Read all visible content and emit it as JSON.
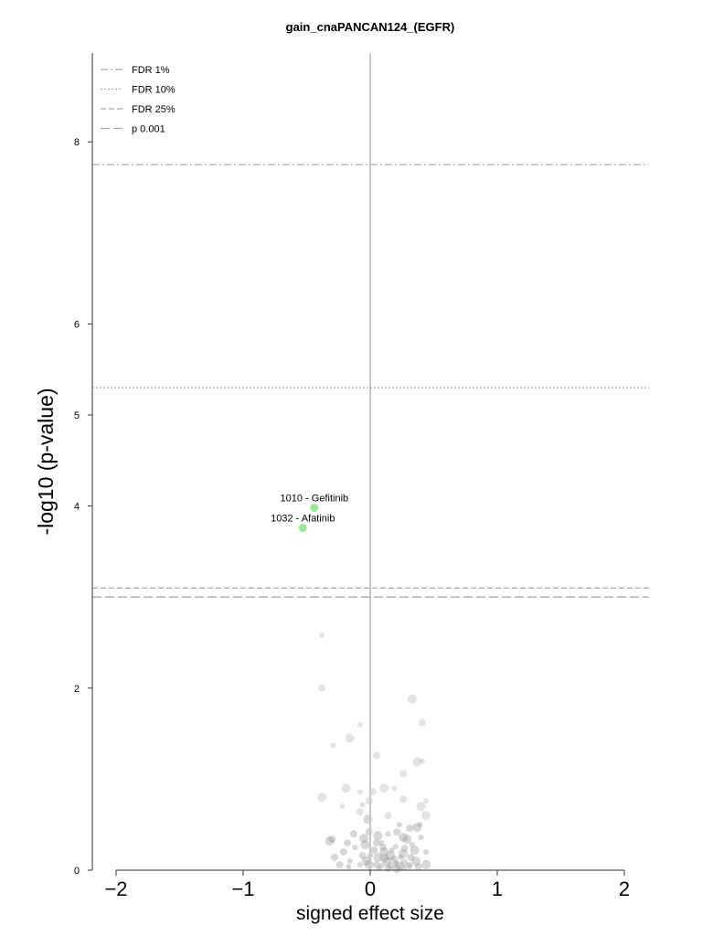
{
  "chart_data": {
    "type": "scatter",
    "title": "gain_cnaPANCAN124_(EGFR)",
    "xlabel": "signed effect size",
    "ylabel": "-log10 (p-value)",
    "xlim": [
      -2.2,
      2.2
    ],
    "ylim": [
      0,
      8.98
    ],
    "x_ticks": [
      "-2",
      "-1",
      "0",
      "1",
      "2"
    ],
    "y_ticks": [
      "0",
      "2",
      "4",
      "5",
      "6",
      "8"
    ],
    "grid": false,
    "legend_position": "top-left",
    "thresholds": [
      {
        "name": "FDR 1%",
        "style": "dashdot",
        "y": 7.75
      },
      {
        "name": "FDR 10%",
        "style": "dotted",
        "y": 5.3
      },
      {
        "name": "FDR 25%",
        "style": "dashed",
        "y": 3.1
      },
      {
        "name": "p 0.001",
        "style": "longdash",
        "y": 3.0
      }
    ],
    "highlighted_points": [
      {
        "label": "1010 - Gefitinib",
        "x": -0.44,
        "y": 3.98,
        "color": "#9be89b"
      },
      {
        "label": "1032 - Afatinib",
        "x": -0.53,
        "y": 3.76,
        "color": "#9be89b"
      }
    ],
    "background_points": [
      [
        -0.38,
        2.58
      ],
      [
        -0.38,
        2.0
      ],
      [
        0.33,
        1.88
      ],
      [
        -0.08,
        1.6
      ],
      [
        0.41,
        1.62
      ],
      [
        -0.16,
        1.45
      ],
      [
        -0.29,
        1.37
      ],
      [
        0.05,
        1.26
      ],
      [
        0.37,
        1.19
      ],
      [
        0.41,
        1.2
      ],
      [
        0.26,
        1.06
      ],
      [
        -0.19,
        0.9
      ],
      [
        -0.08,
        0.86
      ],
      [
        0.02,
        0.86
      ],
      [
        0.11,
        0.9
      ],
      [
        0.19,
        0.9
      ],
      [
        0.26,
        0.78
      ],
      [
        -0.38,
        0.8
      ],
      [
        -0.06,
        0.72
      ],
      [
        -0.01,
        0.76
      ],
      [
        0.4,
        0.7
      ],
      [
        0.44,
        0.76
      ],
      [
        0.14,
        0.6
      ],
      [
        0.44,
        0.6
      ],
      [
        -0.22,
        0.7
      ],
      [
        -0.08,
        0.64
      ],
      [
        -0.02,
        0.56
      ],
      [
        0.23,
        0.5
      ],
      [
        0.31,
        0.46
      ],
      [
        0.37,
        0.47
      ],
      [
        0.39,
        0.5
      ],
      [
        -0.01,
        0.42
      ],
      [
        0.06,
        0.38
      ],
      [
        0.14,
        0.4
      ],
      [
        0.21,
        0.42
      ],
      [
        0.29,
        0.34
      ],
      [
        0.4,
        0.36
      ],
      [
        -0.3,
        0.34
      ],
      [
        -0.05,
        0.35
      ],
      [
        0.09,
        0.3
      ],
      [
        -0.18,
        0.3
      ],
      [
        -0.32,
        0.32
      ],
      [
        0.2,
        0.26
      ],
      [
        0.27,
        0.24
      ],
      [
        0.35,
        0.22
      ],
      [
        0.44,
        0.2
      ],
      [
        0.03,
        0.22
      ],
      [
        0.11,
        0.2
      ],
      [
        -0.12,
        0.25
      ],
      [
        -0.21,
        0.2
      ],
      [
        0.16,
        0.16
      ],
      [
        0.24,
        0.14
      ],
      [
        0.32,
        0.14
      ],
      [
        0.06,
        0.14
      ],
      [
        0.0,
        0.16
      ],
      [
        -0.06,
        0.16
      ],
      [
        0.13,
        0.1
      ],
      [
        0.2,
        0.08
      ],
      [
        0.27,
        0.08
      ],
      [
        0.36,
        0.1
      ],
      [
        0.09,
        0.05
      ],
      [
        0.16,
        0.05
      ],
      [
        0.23,
        0.05
      ],
      [
        0.31,
        0.04
      ],
      [
        0.05,
        0.06
      ],
      [
        -0.01,
        0.06
      ],
      [
        -0.08,
        0.06
      ],
      [
        0.19,
        0.12
      ],
      [
        0.11,
        0.13
      ],
      [
        -0.16,
        0.1
      ],
      [
        -0.28,
        0.14
      ],
      [
        -0.03,
        0.1
      ],
      [
        0.07,
        0.02
      ],
      [
        0.14,
        0.02
      ],
      [
        0.21,
        0.02
      ],
      [
        0.27,
        0.02
      ],
      [
        0.38,
        0.04
      ],
      [
        0.44,
        0.06
      ],
      [
        -0.17,
        0.04
      ],
      [
        -0.24,
        0.06
      ],
      [
        0.26,
        0.18
      ],
      [
        0.17,
        0.22
      ],
      [
        0.1,
        0.25
      ],
      [
        -0.04,
        0.28
      ],
      [
        0.33,
        0.28
      ],
      [
        -0.13,
        0.4
      ],
      [
        0.26,
        0.36
      ],
      [
        0.31,
        0.06
      ],
      [
        0.05,
        0.3
      ]
    ]
  }
}
